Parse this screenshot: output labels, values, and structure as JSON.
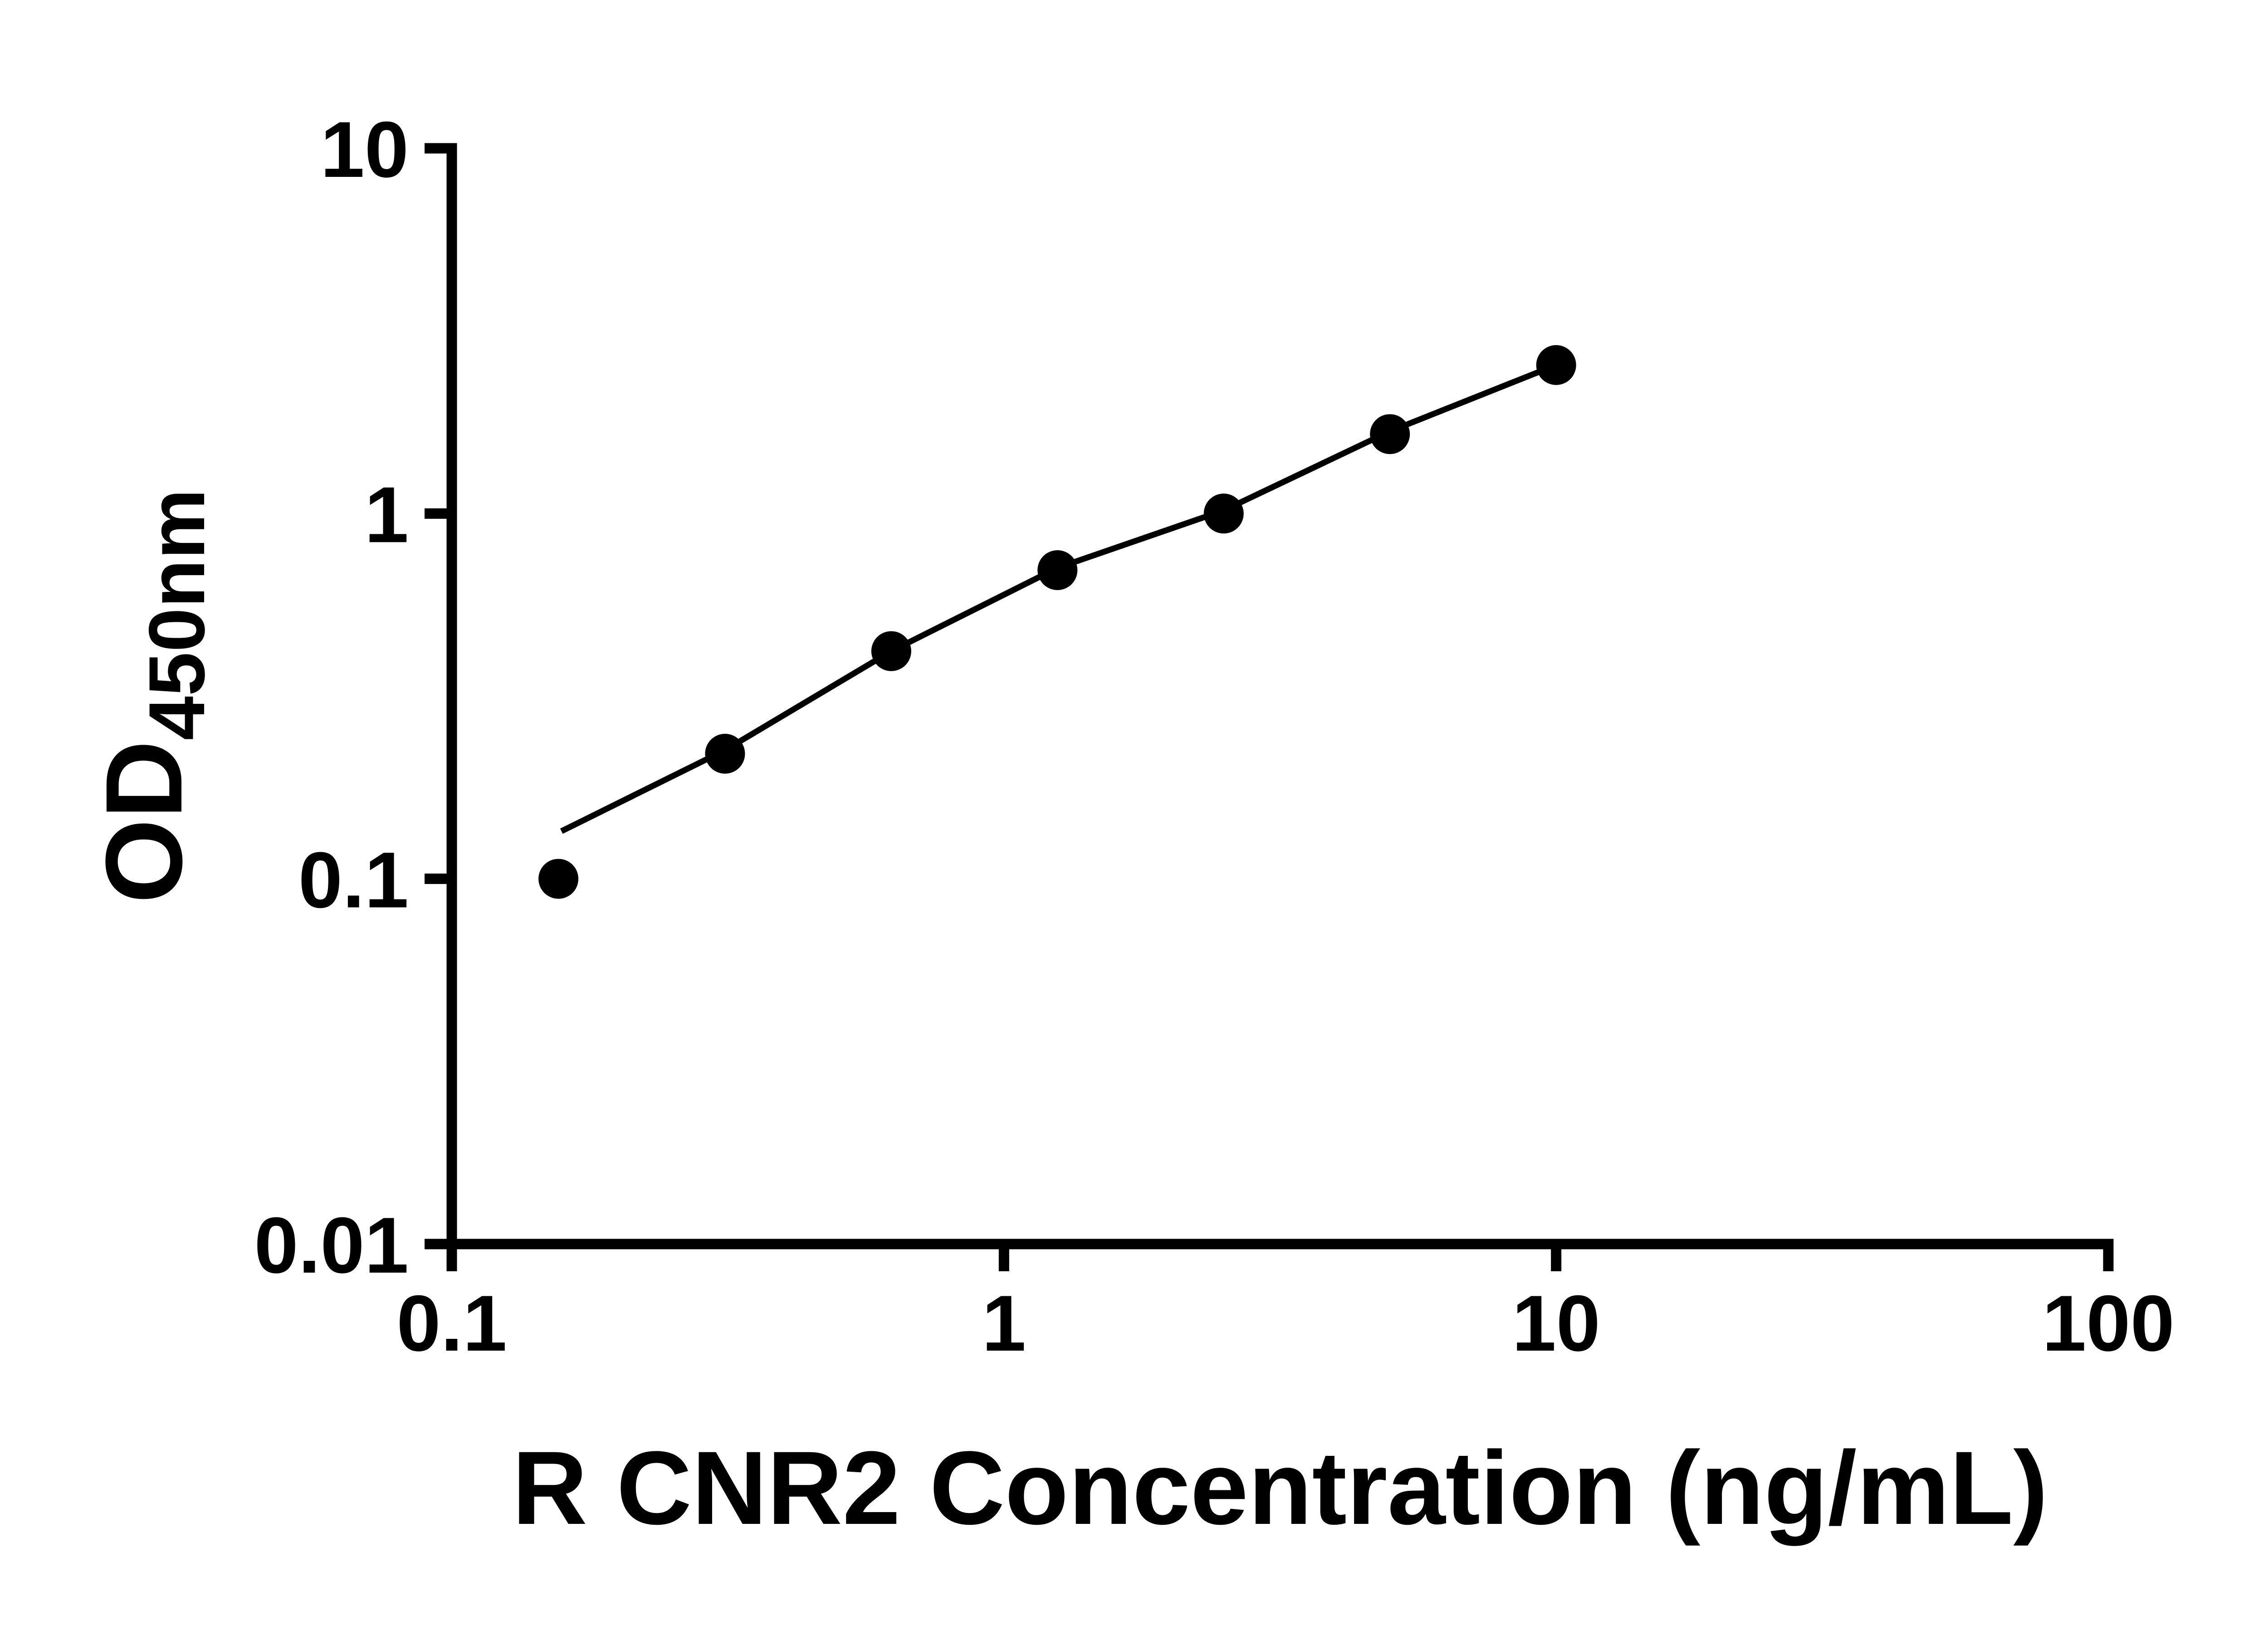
{
  "chart_data": {
    "type": "scatter",
    "title": "",
    "xlabel": "R CNR2 Concentration (ng/mL)",
    "ylabel_main": "OD",
    "ylabel_sub": "450nm",
    "x_scale": "log",
    "y_scale": "log",
    "xlim": [
      0.1,
      100
    ],
    "ylim": [
      0.01,
      10
    ],
    "grid": false,
    "legend": "none",
    "x_ticks": [
      {
        "value": 0.1,
        "label": "0.1"
      },
      {
        "value": 1,
        "label": "1"
      },
      {
        "value": 10,
        "label": "10"
      },
      {
        "value": 100,
        "label": "100"
      }
    ],
    "y_ticks": [
      {
        "value": 10,
        "label": "10"
      },
      {
        "value": 1,
        "label": "1"
      },
      {
        "value": 0.1,
        "label": "0.1"
      },
      {
        "value": 0.01,
        "label": "0.01"
      }
    ],
    "points": [
      {
        "x": 0.156,
        "y": 0.1
      },
      {
        "x": 0.3125,
        "y": 0.22
      },
      {
        "x": 0.625,
        "y": 0.42
      },
      {
        "x": 1.25,
        "y": 0.7
      },
      {
        "x": 2.5,
        "y": 1.0
      },
      {
        "x": 5,
        "y": 1.65
      },
      {
        "x": 10,
        "y": 2.55
      }
    ],
    "fit_line": [
      [
        0.158,
        0.135
      ],
      [
        0.3125,
        0.225
      ],
      [
        0.625,
        0.42
      ],
      [
        1.25,
        0.71
      ],
      [
        2.5,
        1.02
      ],
      [
        5,
        1.68
      ],
      [
        10,
        2.55
      ]
    ],
    "marker_color": "#000000",
    "line_color": "#000000",
    "axis_color": "#000000"
  }
}
